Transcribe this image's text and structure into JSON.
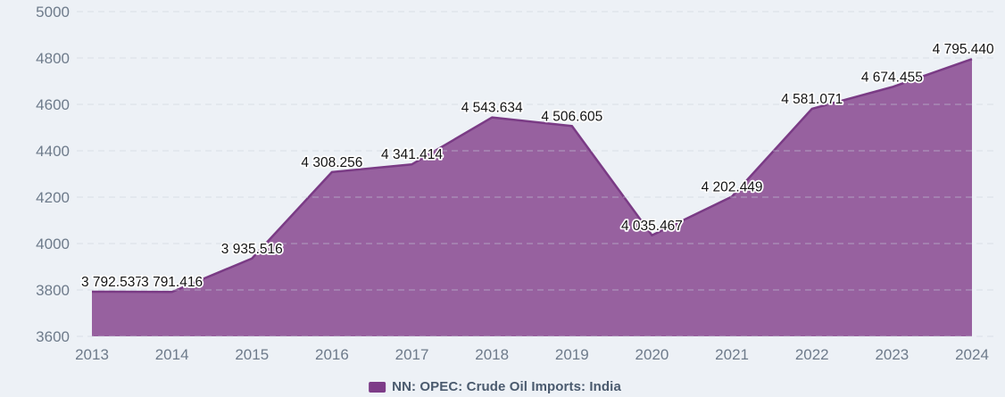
{
  "chart_data": {
    "type": "area",
    "title": "",
    "xlabel": "",
    "ylabel": "",
    "categories": [
      "2013",
      "2014",
      "2015",
      "2016",
      "2017",
      "2018",
      "2019",
      "2020",
      "2021",
      "2022",
      "2023",
      "2024"
    ],
    "series": [
      {
        "name": "NN: OPEC: Crude Oil Imports: India",
        "values": [
          3792.537,
          3791.416,
          3935.516,
          4308.256,
          4341.414,
          4543.634,
          4506.605,
          4035.467,
          4202.449,
          4581.071,
          4674.455,
          4795.44
        ]
      }
    ],
    "point_labels": [
      "3 792.537",
      "3 791.416",
      "3 935.516",
      "4 308.256",
      "4 341.414",
      "4 543.634",
      "4 506.605",
      "4 035.467",
      "4 202.449",
      "4 581.071",
      "4 674.455",
      "4 795.440"
    ],
    "ylim": [
      3600,
      5000
    ],
    "ytick_step": 200,
    "yticks": [
      "3600",
      "3800",
      "4000",
      "4200",
      "4400",
      "4600",
      "4800",
      "5000"
    ],
    "grid": "horizontal-dashed",
    "legend_position": "bottom-center",
    "colors": {
      "background": "#edf1f6",
      "area_fill": "#97619f",
      "line_stroke": "#7a3b85",
      "legend_marker": "#7d3c88",
      "gridline": "#c9d1da",
      "axis_text": "#6e7b8b",
      "point_label_text": "#141414",
      "point_label_halo": "#ffffff",
      "legend_text": "#4a5a6e"
    }
  }
}
